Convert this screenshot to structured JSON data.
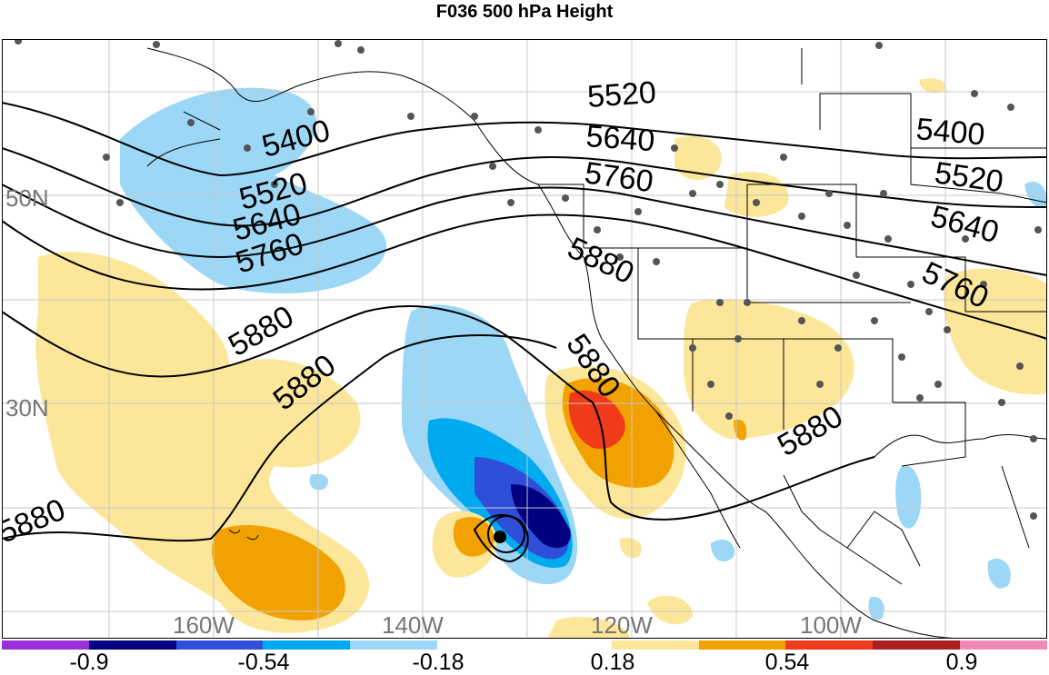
{
  "title": "F036 500 hPa Height",
  "map": {
    "lat_labels": [
      "50N",
      "30N"
    ],
    "lon_labels": [
      "160W",
      "140W",
      "120W",
      "100W"
    ],
    "contour_labels": [
      "5400",
      "5520",
      "5640",
      "5760",
      "5880"
    ],
    "contour_interval": 120,
    "station_marker_color": "#555555"
  },
  "colorbar": {
    "colors": [
      "#9b30d9",
      "#000080",
      "#2f4fd8",
      "#00aaee",
      "#9cd8f6",
      "#ffffff",
      "#ffffff",
      "#fbe69a",
      "#f2a200",
      "#ef3b1a",
      "#aa1f1f",
      "#f08ab8"
    ],
    "labels": [
      "-0.9",
      "-0.54",
      "-0.18",
      "0.18",
      "0.54",
      "0.9"
    ]
  }
}
